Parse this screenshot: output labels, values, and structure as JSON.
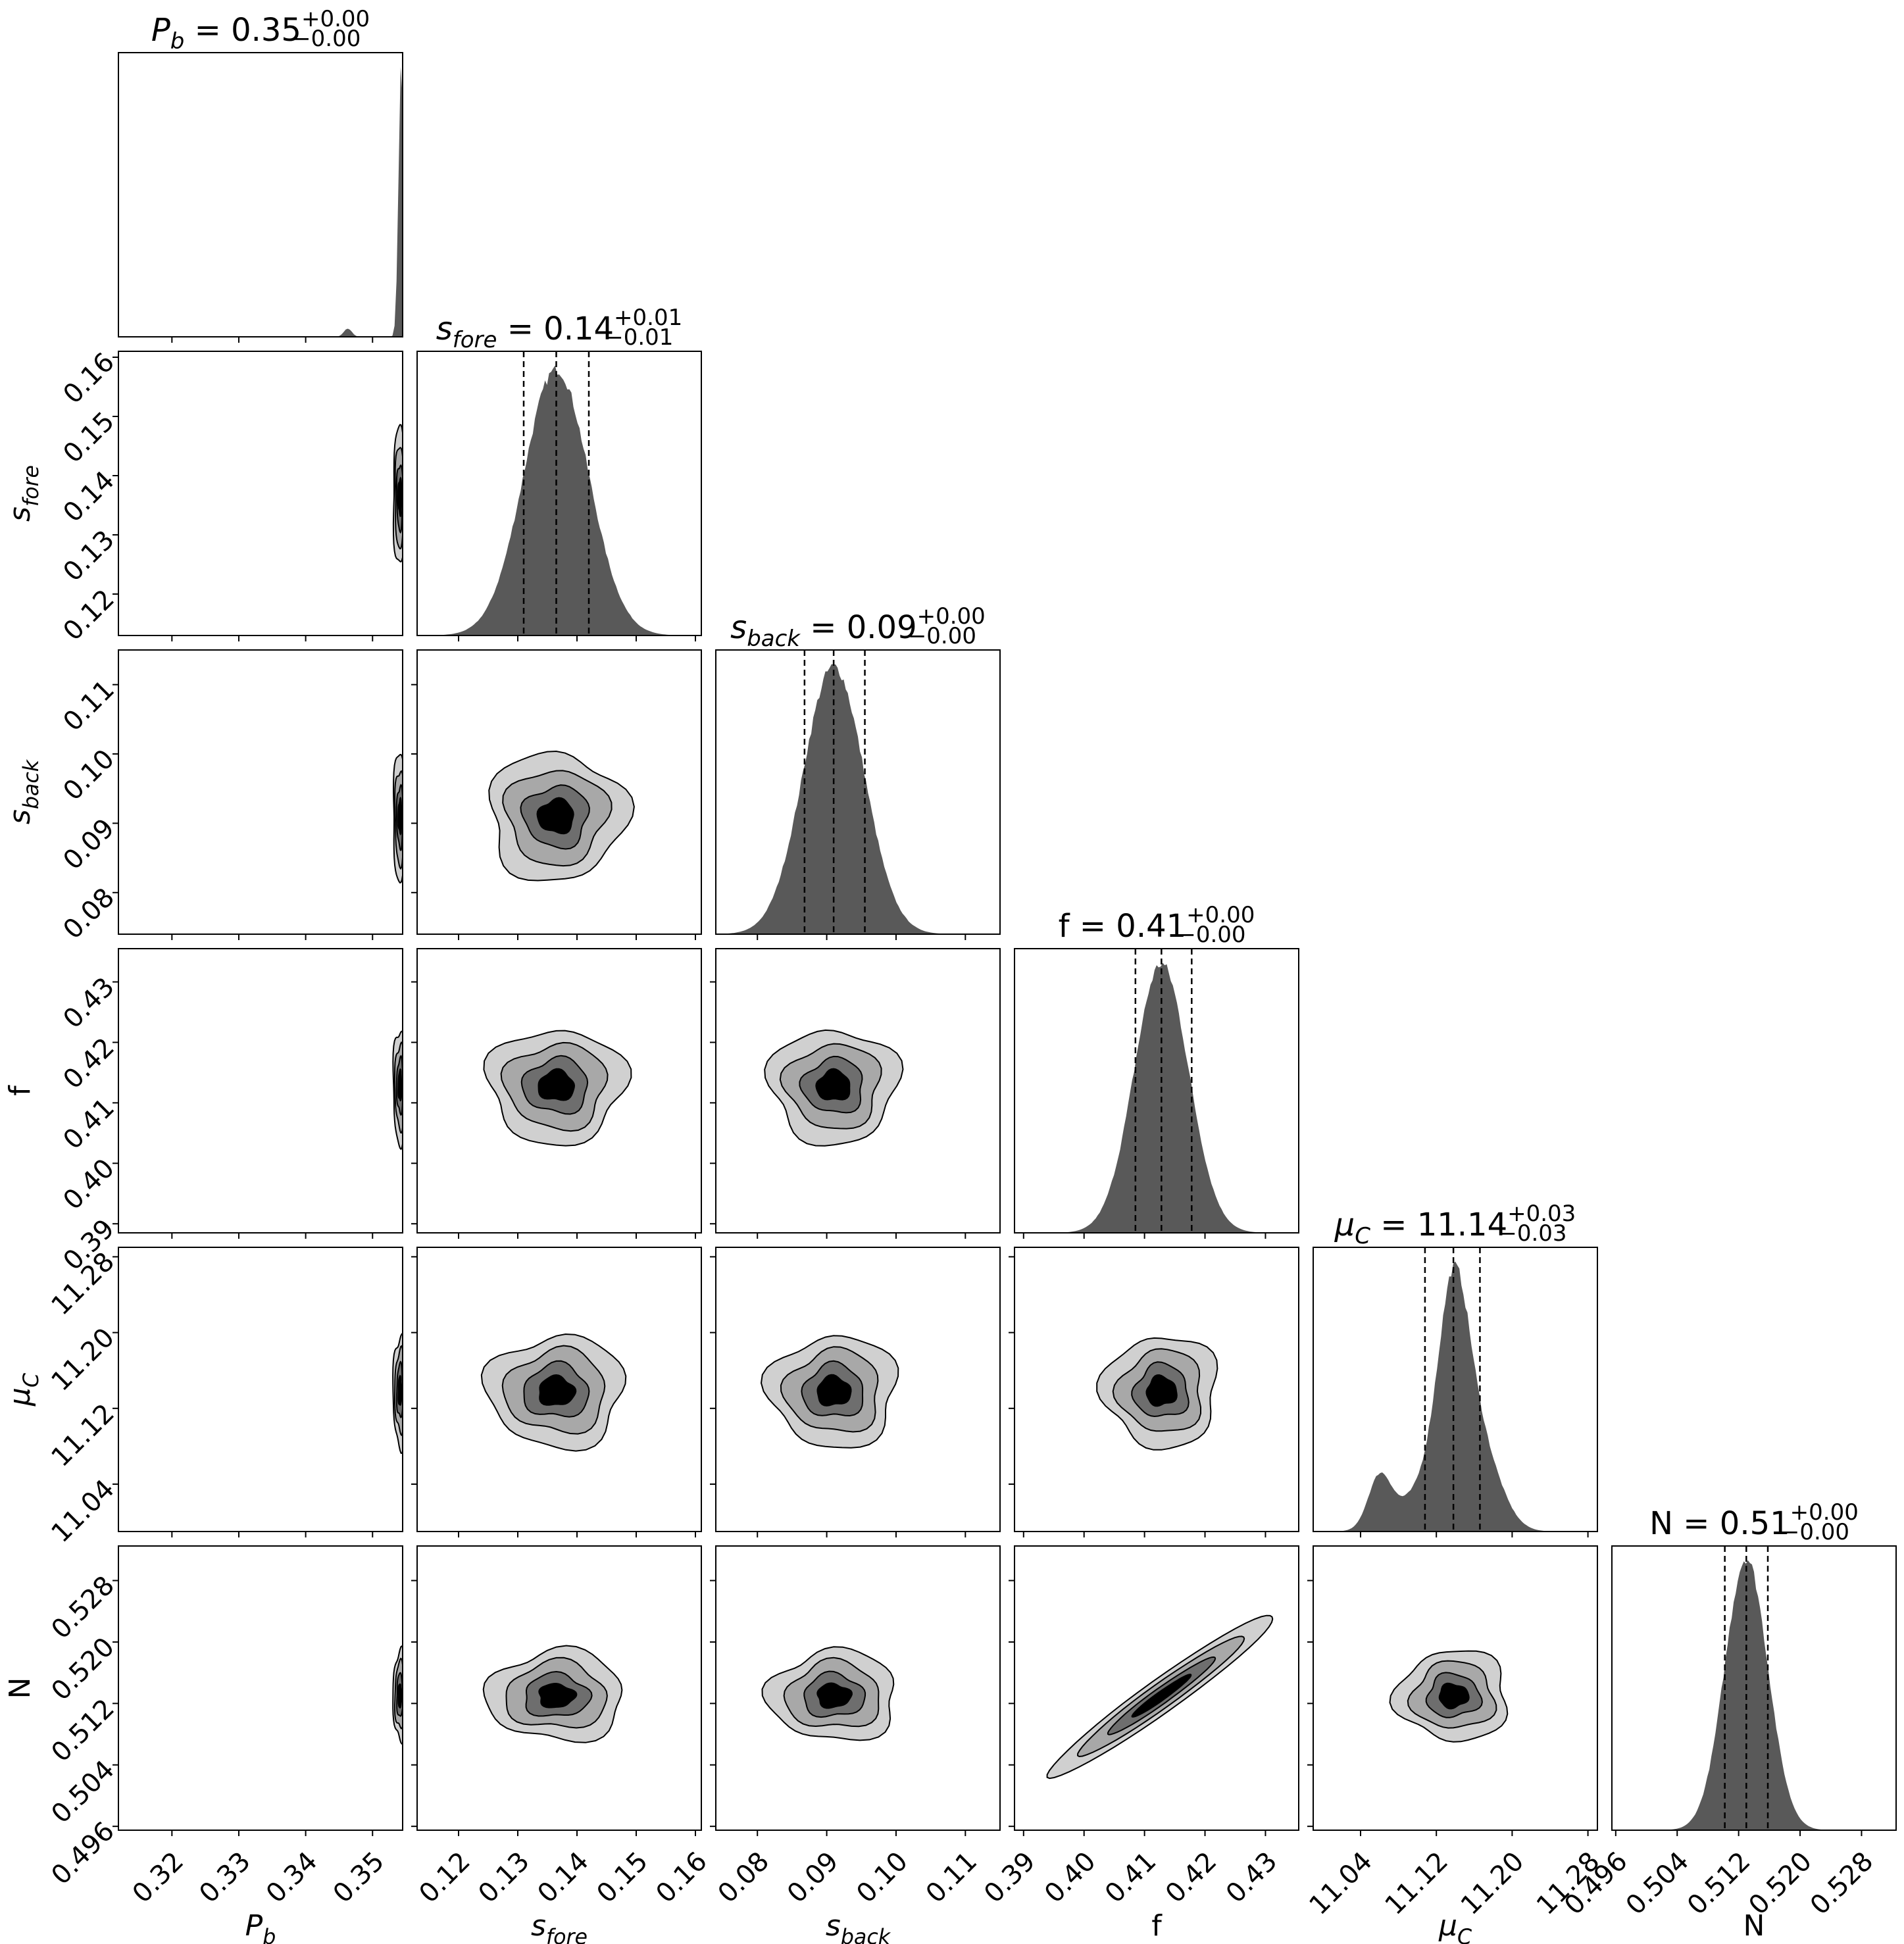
{
  "chart_data": {
    "type": "corner",
    "parameters": [
      {
        "key": "Pb",
        "label_main": "P",
        "label_sub": "b",
        "title_value": "0.35",
        "title_plus": "+0.00",
        "title_minus": "−0.00",
        "range": [
          0.312,
          0.3545
        ],
        "ticks": [
          "0.32",
          "0.33",
          "0.34",
          "0.35"
        ],
        "tick_values": [
          0.32,
          0.33,
          0.34,
          0.35
        ],
        "quantiles": [],
        "median": 0.3538,
        "spread": 0.0006
      },
      {
        "key": "sfore",
        "label_main": "s",
        "label_sub": "fore",
        "title_value": "0.14",
        "title_plus": "+0.01",
        "title_minus": "−0.01",
        "range": [
          0.113,
          0.161
        ],
        "ticks": [
          "0.12",
          "0.13",
          "0.14",
          "0.15",
          "0.16"
        ],
        "tick_values": [
          0.12,
          0.13,
          0.14,
          0.15,
          0.16
        ],
        "quantiles": [
          0.131,
          0.1365,
          0.142
        ],
        "median": 0.1365,
        "spread": 0.0055
      },
      {
        "key": "sback",
        "label_main": "s",
        "label_sub": "back",
        "title_value": "0.09",
        "title_plus": "+0.00",
        "title_minus": "−0.00",
        "range": [
          0.074,
          0.115
        ],
        "ticks": [
          "0.08",
          "0.09",
          "0.10",
          "0.11"
        ],
        "tick_values": [
          0.08,
          0.09,
          0.1,
          0.11
        ],
        "quantiles": [
          0.0868,
          0.091,
          0.0955
        ],
        "median": 0.091,
        "spread": 0.0044
      },
      {
        "key": "f",
        "label_main": "f",
        "label_sub": "",
        "title_value": "0.41",
        "title_plus": "+0.00",
        "title_minus": "−0.00",
        "range": [
          0.3885,
          0.4355
        ],
        "ticks": [
          "0.39",
          "0.40",
          "0.41",
          "0.42",
          "0.43"
        ],
        "tick_values": [
          0.39,
          0.4,
          0.41,
          0.42,
          0.43
        ],
        "quantiles": [
          0.4085,
          0.4128,
          0.4178
        ],
        "median": 0.4128,
        "spread": 0.0045
      },
      {
        "key": "muC",
        "label_main": "μ",
        "label_sub": "C",
        "title_value": "11.14",
        "title_plus": "+0.03",
        "title_minus": "−0.03",
        "range": [
          10.99,
          11.29
        ],
        "ticks": [
          "11.04",
          "11.12",
          "11.20",
          "11.28"
        ],
        "tick_values": [
          11.04,
          11.12,
          11.2,
          11.28
        ],
        "quantiles": [
          11.108,
          11.138,
          11.166
        ],
        "median": 11.138,
        "spread": 0.028
      },
      {
        "key": "N",
        "label_main": "N",
        "label_sub": "",
        "title_value": "0.51",
        "title_plus": "+0.00",
        "title_minus": "−0.00",
        "range": [
          0.4955,
          0.5325
        ],
        "ticks": [
          "0.496",
          "0.504",
          "0.512",
          "0.520",
          "0.528"
        ],
        "tick_values": [
          0.496,
          0.504,
          0.512,
          0.52,
          0.528
        ],
        "quantiles": [
          0.5102,
          0.513,
          0.5158
        ],
        "median": 0.513,
        "spread": 0.0028
      }
    ],
    "contour_levels": 4,
    "colors": {
      "hist": "#595959",
      "levels": [
        "#d0d0d0",
        "#a8a8a8",
        "#6e6e6e",
        "#000000"
      ],
      "quantile_line": "#000000"
    }
  }
}
